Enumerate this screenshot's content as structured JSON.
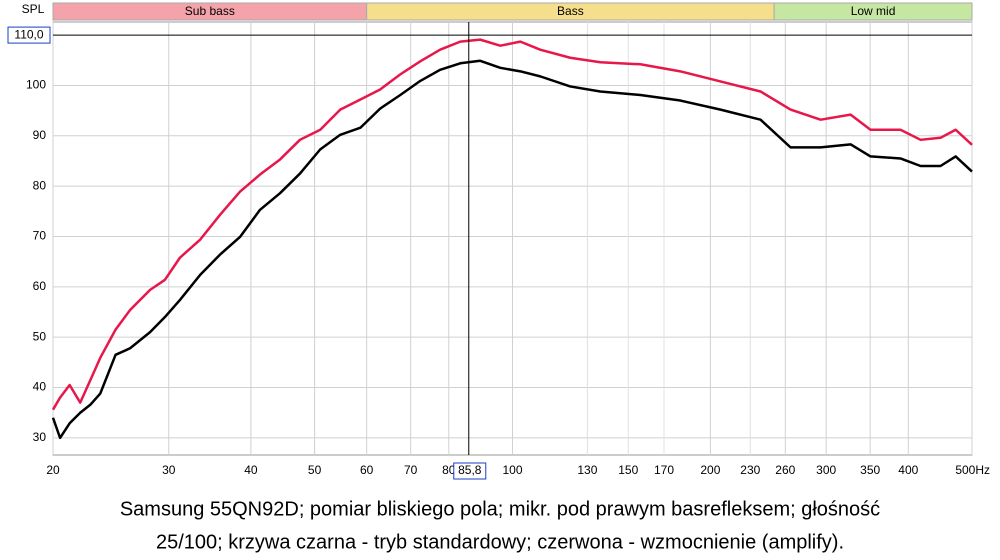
{
  "chart_data": {
    "type": "line",
    "y_label": "SPL",
    "bands": [
      {
        "label": "Sub bass",
        "start": 20,
        "end": 60,
        "color": "#f4a3aa"
      },
      {
        "label": "Bass",
        "start": 60,
        "end": 250,
        "color": "#f6df8c"
      },
      {
        "label": "Low mid",
        "start": 250,
        "end": 500,
        "color": "#c6e7a2"
      }
    ],
    "x": [
      20,
      20.5,
      21.2,
      22.0,
      22.8,
      23.6,
      24.9,
      26.2,
      28.1,
      29.6,
      31.2,
      33.5,
      35.9,
      38.5,
      41.3,
      44.3,
      47.5,
      51.0,
      54.7,
      58.7,
      62.9,
      67.5,
      72.4,
      77.6,
      83.3,
      89.3,
      95.8,
      102.8,
      110.2,
      122.4,
      136.0,
      156.5,
      180.0,
      207.2,
      238.4,
      264.8,
      294.2,
      326.8,
      350.4,
      389.2,
      417.6,
      447.8,
      472.2,
      500
    ],
    "series": [
      {
        "color": "#e8174a",
        "values": [
          35.6,
          38,
          40.5,
          37,
          41.5,
          45.9,
          51.5,
          55.4,
          59.4,
          61.4,
          65.8,
          69.4,
          74.3,
          78.9,
          82.3,
          85.3,
          89.2,
          91.2,
          95.2,
          97.2,
          99.2,
          102.2,
          104.8,
          107.1,
          108.7,
          109.1,
          107.9,
          108.7,
          107.1,
          105.5,
          104.6,
          104.2,
          102.8,
          100.8,
          98.8,
          95.2,
          93.2,
          94.2,
          91.2,
          91.2,
          89.2,
          89.6,
          91.2,
          88.2
        ]
      },
      {
        "color": "#000000",
        "values": [
          34,
          30,
          32.9,
          35,
          36.6,
          38.8,
          46.5,
          47.8,
          51,
          54,
          57.4,
          62.4,
          66.4,
          69.9,
          75.3,
          78.6,
          82.5,
          87.3,
          90.2,
          91.6,
          95.4,
          98.1,
          100.9,
          103.1,
          104.4,
          104.9,
          103.5,
          102.8,
          101.8,
          99.8,
          98.8,
          98.1,
          97,
          95.2,
          93.2,
          87.7,
          87.7,
          88.3,
          85.9,
          85.5,
          84,
          84,
          85.9,
          82.9
        ]
      }
    ],
    "xlog": true,
    "xlim": [
      20,
      500
    ],
    "xticks": [
      20,
      30,
      40,
      50,
      60,
      70,
      80,
      100,
      200,
      260,
      300,
      350,
      400,
      {
        "value": 500,
        "label": "500Hz"
      }
    ],
    "xticks_minor": [
      130,
      150,
      170,
      230
    ],
    "ylim": [
      26.6,
      112.6
    ],
    "yticks": [
      30,
      40,
      50,
      60,
      70,
      80,
      90,
      100
    ],
    "grid": true,
    "cursor": {
      "x": 85.8,
      "x_label": "85,8",
      "y": 110,
      "y_label": "110,0"
    },
    "caption": [
      "Samsung 55QN92D; pomiar bliskiego pola; mikr. pod prawym basrefleksem; głośność",
      "25/100; krzywa czarna - tryb standardowy; czerwona - wzmocnienie (amplify)."
    ]
  }
}
